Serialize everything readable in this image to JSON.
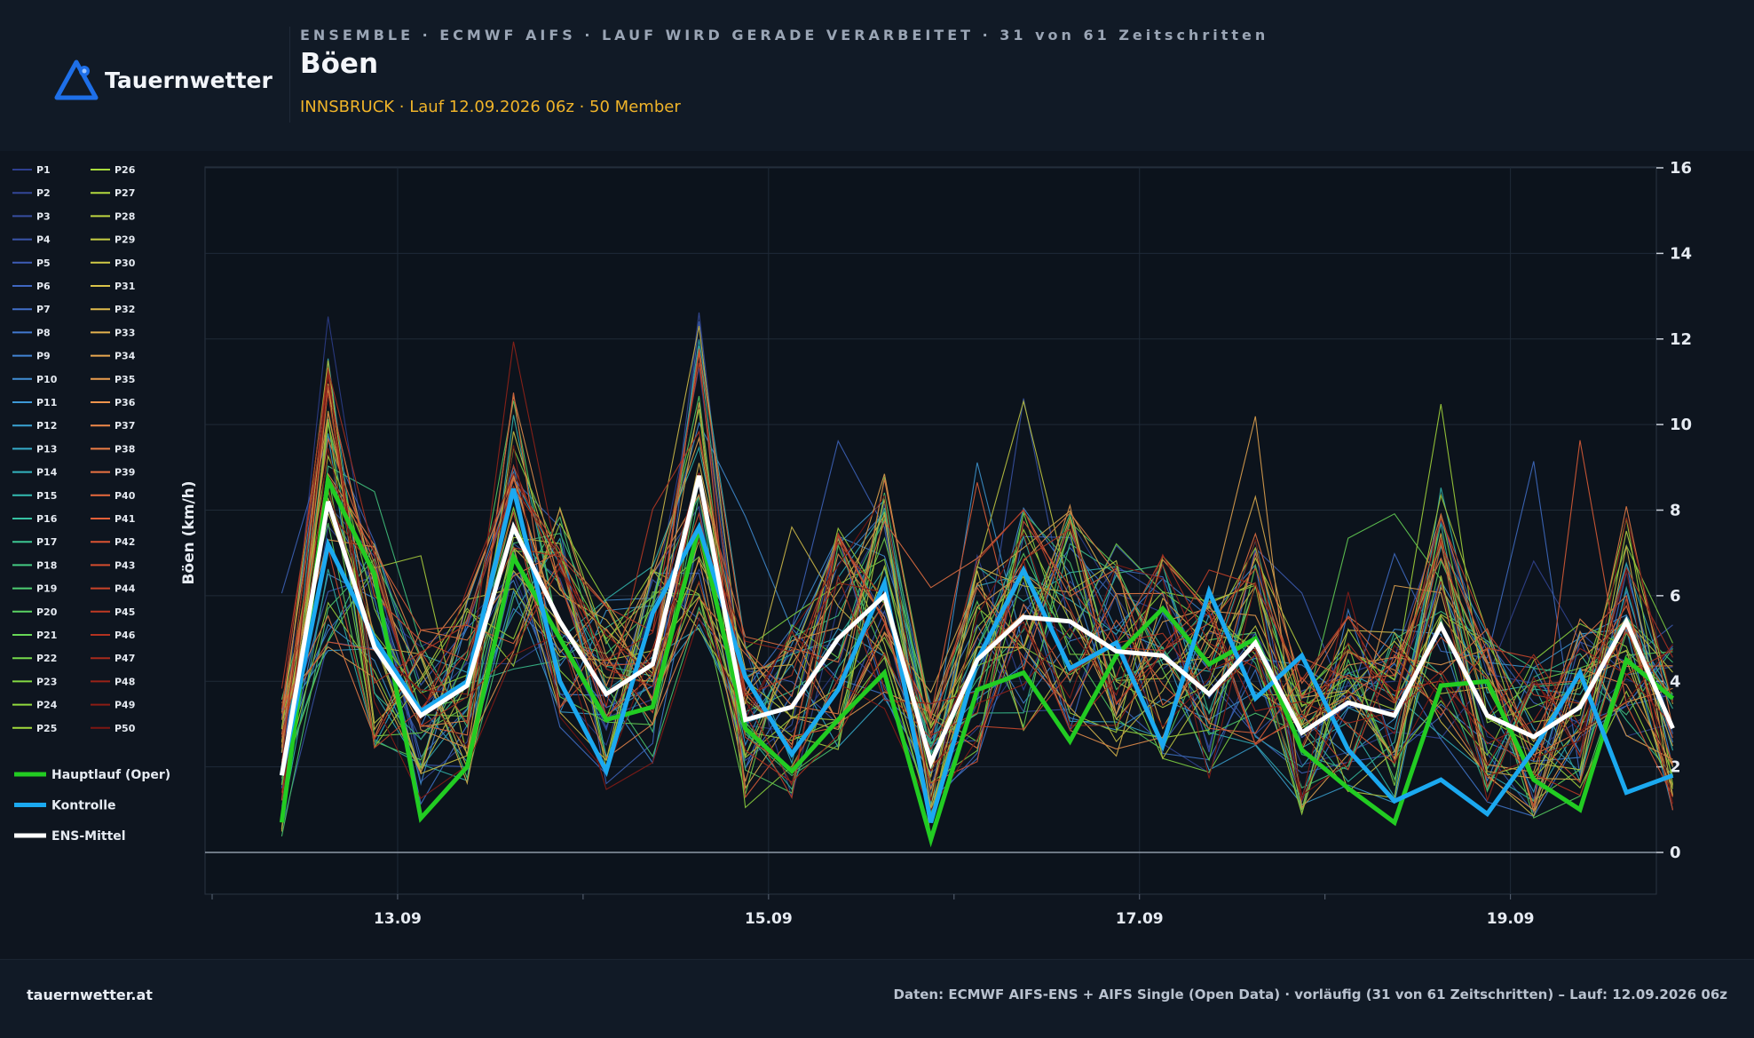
{
  "brand": {
    "name": "Tauernwetter",
    "accent": "#1e6fe8"
  },
  "header": {
    "kicker": "ENSEMBLE · ECMWF AIFS · LAUF WIRD GERADE VERARBEITET · 31 von 61 Zeitschritten",
    "title": "Böen",
    "subtitle": "INNSBRUCK · Lauf 12.09.2026 06z · 50 Member"
  },
  "footer": {
    "site": "tauernwetter.at",
    "source": "Daten: ECMWF AIFS-ENS + AIFS Single (Open Data) · vorläufig (31 von 61 Zeitschritten) – Lauf: 12.09.2026 06z"
  },
  "chart_data": {
    "type": "line",
    "ylabel": "Böen (km/h)",
    "ylim": [
      -1,
      16
    ],
    "yticks": [
      0,
      2,
      4,
      6,
      8,
      10,
      12,
      14,
      16
    ],
    "xlim": [
      0,
      15.2
    ],
    "xticks": [
      {
        "value": 2,
        "label": "13.09"
      },
      {
        "value": 6,
        "label": "15.09"
      },
      {
        "value": 10,
        "label": "17.09"
      },
      {
        "value": 14,
        "label": "19.09"
      }
    ],
    "x": [
      0.75,
      1.25,
      1.75,
      2.25,
      2.75,
      3.25,
      3.75,
      4.25,
      4.75,
      5.25,
      5.75,
      6.25,
      6.75,
      7.25,
      7.75,
      8.25,
      8.75,
      9.25,
      9.75,
      10.25,
      10.75,
      11.25,
      11.75,
      12.25,
      12.75,
      13.25,
      13.75,
      14.25,
      14.75,
      15.25,
      15.75
    ],
    "x_note": "x in 12-hour steps since 12.09 00z",
    "legend_position": "left",
    "grid": true,
    "main_series": [
      {
        "name": "Hauptlauf (Oper)",
        "color": "#22cc22",
        "width": 5,
        "values": [
          0.7,
          8.7,
          6.5,
          0.8,
          2.0,
          6.9,
          5.0,
          3.1,
          3.4,
          7.6,
          2.9,
          1.9,
          3.1,
          4.2,
          0.3,
          3.8,
          4.2,
          2.6,
          4.6,
          5.7,
          4.4,
          5.0,
          2.4,
          1.5,
          0.7,
          3.9,
          4.0,
          1.7,
          1.0,
          4.5,
          3.6
        ]
      },
      {
        "name": "Kontrolle",
        "color": "#1ba9f0",
        "width": 5,
        "values": [
          1.8,
          7.2,
          5.0,
          3.3,
          4.0,
          8.5,
          4.0,
          1.9,
          5.6,
          7.6,
          4.1,
          2.3,
          3.8,
          6.3,
          0.7,
          4.5,
          6.6,
          4.3,
          4.9,
          2.5,
          6.1,
          3.6,
          4.6,
          2.4,
          1.2,
          1.7,
          0.9,
          2.4,
          4.2,
          1.4,
          1.8
        ]
      },
      {
        "name": "ENS-Mittel",
        "color": "#ffffff",
        "width": 5,
        "values": [
          1.8,
          8.2,
          4.8,
          3.2,
          3.9,
          7.6,
          5.4,
          3.7,
          4.4,
          8.8,
          3.1,
          3.4,
          5.0,
          6.0,
          2.1,
          4.5,
          5.5,
          5.4,
          4.7,
          4.6,
          3.7,
          4.9,
          2.8,
          3.5,
          3.2,
          5.3,
          3.2,
          2.7,
          3.4,
          5.4,
          2.9
        ]
      }
    ],
    "members": [
      {
        "name": "P1",
        "color": "#2e3f8f"
      },
      {
        "name": "P2",
        "color": "#334697"
      },
      {
        "name": "P3",
        "color": "#374da0"
      },
      {
        "name": "P4",
        "color": "#3a55ab"
      },
      {
        "name": "P5",
        "color": "#3d5db6"
      },
      {
        "name": "P6",
        "color": "#3f66c0"
      },
      {
        "name": "P7",
        "color": "#416fc9"
      },
      {
        "name": "P8",
        "color": "#4279d0"
      },
      {
        "name": "P9",
        "color": "#4284d4"
      },
      {
        "name": "P10",
        "color": "#418fd6"
      },
      {
        "name": "P11",
        "color": "#3e99d6"
      },
      {
        "name": "P12",
        "color": "#3aa3d3"
      },
      {
        "name": "P13",
        "color": "#36acca"
      },
      {
        "name": "P14",
        "color": "#33b4bf"
      },
      {
        "name": "P15",
        "color": "#33bbb1"
      },
      {
        "name": "P16",
        "color": "#36c1a2"
      },
      {
        "name": "P17",
        "color": "#3cc692"
      },
      {
        "name": "P18",
        "color": "#44ca82"
      },
      {
        "name": "P19",
        "color": "#4ecf72"
      },
      {
        "name": "P20",
        "color": "#5ad363"
      },
      {
        "name": "P21",
        "color": "#67d656"
      },
      {
        "name": "P22",
        "color": "#75d94b"
      },
      {
        "name": "P23",
        "color": "#84da43"
      },
      {
        "name": "P24",
        "color": "#92db3e"
      },
      {
        "name": "P25",
        "color": "#a1db3c"
      },
      {
        "name": "P26",
        "color": "#a8dc3c"
      },
      {
        "name": "P27",
        "color": "#b3d93e"
      },
      {
        "name": "P28",
        "color": "#bed540"
      },
      {
        "name": "P29",
        "color": "#c8d043"
      },
      {
        "name": "P30",
        "color": "#d1ca46"
      },
      {
        "name": "P31",
        "color": "#d9c34a"
      },
      {
        "name": "P32",
        "color": "#e0bb4d"
      },
      {
        "name": "P33",
        "color": "#e5b24f"
      },
      {
        "name": "P34",
        "color": "#e9a850"
      },
      {
        "name": "P35",
        "color": "#ec9e4f"
      },
      {
        "name": "P36",
        "color": "#ee944d"
      },
      {
        "name": "P37",
        "color": "#ef894a"
      },
      {
        "name": "P38",
        "color": "#ee7e46"
      },
      {
        "name": "P39",
        "color": "#ec7342"
      },
      {
        "name": "P40",
        "color": "#e8693d"
      },
      {
        "name": "P41",
        "color": "#e35f38"
      },
      {
        "name": "P42",
        "color": "#dc5533"
      },
      {
        "name": "P43",
        "color": "#d44c2e"
      },
      {
        "name": "P44",
        "color": "#ca4329"
      },
      {
        "name": "P45",
        "color": "#bf3a24"
      },
      {
        "name": "P46",
        "color": "#b33220"
      },
      {
        "name": "P47",
        "color": "#a72a1c"
      },
      {
        "name": "P48",
        "color": "#9a2318"
      },
      {
        "name": "P49",
        "color": "#8c1c15"
      },
      {
        "name": "P50",
        "color": "#7e1612"
      }
    ]
  }
}
